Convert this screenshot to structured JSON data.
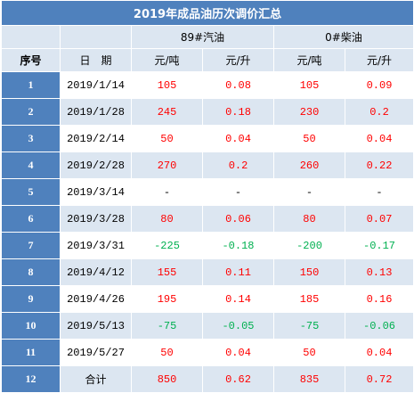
{
  "title": "2019年成品油历次调价汇总",
  "groups": {
    "gasoline": "89#汽油",
    "diesel": "0#柴油"
  },
  "headers": {
    "index": "序号",
    "date": "日　期",
    "gas_ton": "元/吨",
    "gas_liter": "元/升",
    "diesel_ton": "元/吨",
    "diesel_liter": "元/升"
  },
  "rows": [
    {
      "no": "1",
      "date": "2019/1/14",
      "gas_ton": "105",
      "gas_liter": "0.08",
      "diesel_ton": "105",
      "diesel_liter": "0.09"
    },
    {
      "no": "2",
      "date": "2019/1/28",
      "gas_ton": "245",
      "gas_liter": "0.18",
      "diesel_ton": "230",
      "diesel_liter": "0.2"
    },
    {
      "no": "3",
      "date": "2019/2/14",
      "gas_ton": "50",
      "gas_liter": "0.04",
      "diesel_ton": "50",
      "diesel_liter": "0.04"
    },
    {
      "no": "4",
      "date": "2019/2/28",
      "gas_ton": "270",
      "gas_liter": "0.2",
      "diesel_ton": "260",
      "diesel_liter": "0.22"
    },
    {
      "no": "5",
      "date": "2019/3/14",
      "gas_ton": "-",
      "gas_liter": "-",
      "diesel_ton": "-",
      "diesel_liter": "-"
    },
    {
      "no": "6",
      "date": "2019/3/28",
      "gas_ton": "80",
      "gas_liter": "0.06",
      "diesel_ton": "80",
      "diesel_liter": "0.07"
    },
    {
      "no": "7",
      "date": "2019/3/31",
      "gas_ton": "-225",
      "gas_liter": "-0.18",
      "diesel_ton": "-200",
      "diesel_liter": "-0.17"
    },
    {
      "no": "8",
      "date": "2019/4/12",
      "gas_ton": "155",
      "gas_liter": "0.11",
      "diesel_ton": "150",
      "diesel_liter": "0.13"
    },
    {
      "no": "9",
      "date": "2019/4/26",
      "gas_ton": "195",
      "gas_liter": "0.14",
      "diesel_ton": "185",
      "diesel_liter": "0.16"
    },
    {
      "no": "10",
      "date": "2019/5/13",
      "gas_ton": "-75",
      "gas_liter": "-0.05",
      "diesel_ton": "-75",
      "diesel_liter": "-0.06"
    },
    {
      "no": "11",
      "date": "2019/5/27",
      "gas_ton": "50",
      "gas_liter": "0.04",
      "diesel_ton": "50",
      "diesel_liter": "0.04"
    }
  ],
  "total": {
    "no": "12",
    "label": "合计",
    "gas_ton": "850",
    "gas_liter": "0.62",
    "diesel_ton": "835",
    "diesel_liter": "0.72"
  },
  "colors": {
    "header_blue": "#4f81bd",
    "band_light": "#dce6f1",
    "increase": "#ff0000",
    "decrease": "#00b050"
  }
}
